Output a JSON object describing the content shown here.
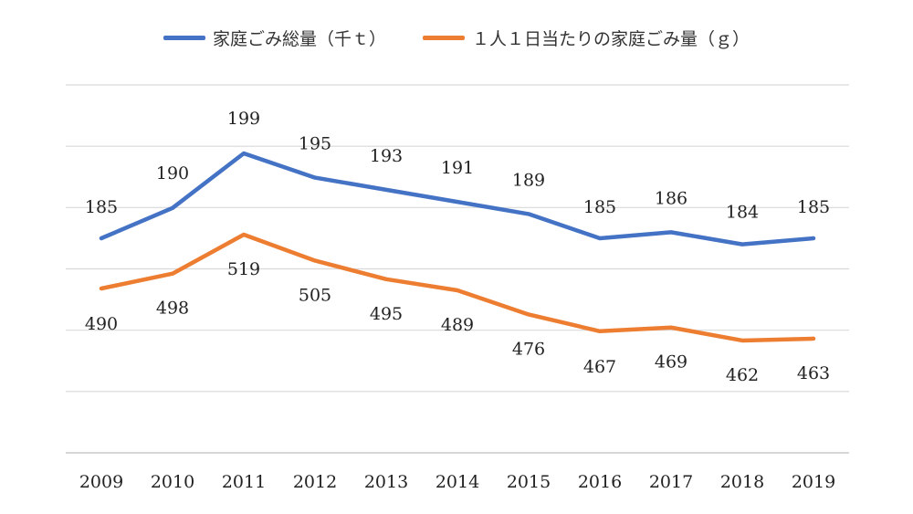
{
  "chart_data": {
    "type": "line",
    "categories": [
      "2009",
      "2010",
      "2011",
      "2012",
      "2013",
      "2014",
      "2015",
      "2016",
      "2017",
      "2018",
      "2019"
    ],
    "series": [
      {
        "name": "家庭ごみ総量（千ｔ）",
        "color": "#4472C4",
        "values": [
          185,
          190,
          199,
          195,
          193,
          191,
          189,
          185,
          186,
          184,
          185
        ]
      },
      {
        "name": "１人１日当たりの家庭ごみ量（ｇ）",
        "color": "#ED7D31",
        "values": [
          490,
          498,
          519,
          505,
          495,
          489,
          476,
          467,
          469,
          462,
          463
        ]
      }
    ],
    "gridlines": 7,
    "grid": true,
    "legend_position": "top",
    "title": "",
    "xlabel": "",
    "ylabel": ""
  }
}
